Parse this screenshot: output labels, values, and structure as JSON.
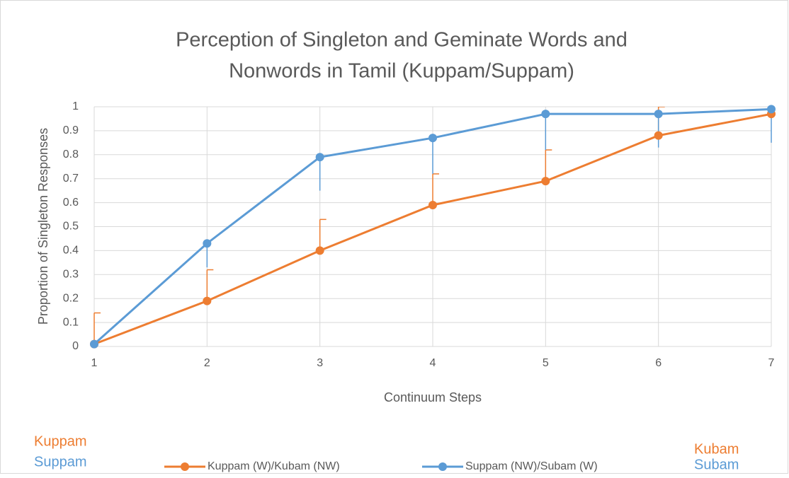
{
  "chart_data": {
    "type": "line",
    "title": [
      "Perception of Singleton and Geminate Words and",
      "Nonwords in Tamil (Kuppam/Suppam)"
    ],
    "x_label": "Continuum Steps",
    "y_label": "Proportion of Singleton  Responses",
    "x": [
      1,
      2,
      3,
      4,
      5,
      6,
      7
    ],
    "xlim": [
      1,
      7
    ],
    "xticks": [
      1,
      2,
      3,
      4,
      5,
      6,
      7
    ],
    "ylim": [
      0,
      1
    ],
    "yticks": [
      0,
      0.1,
      0.2,
      0.3,
      0.4,
      0.5,
      0.6,
      0.7,
      0.8,
      0.9,
      1
    ],
    "grid": true,
    "legend": "bottom",
    "series": [
      {
        "name": "Kuppam (W)/Kubam (NW)",
        "color": "#ED7D31",
        "values": [
          0.01,
          0.19,
          0.4,
          0.59,
          0.69,
          0.88,
          0.97
        ],
        "errors": [
          0.13,
          0.13,
          0.13,
          0.13,
          0.13,
          0.12,
          0.13
        ],
        "error_direction": "plus",
        "error_cap": true
      },
      {
        "name": "Suppam (NW)/Subam (W)",
        "color": "#5B9BD5",
        "values": [
          0.01,
          0.43,
          0.79,
          0.87,
          0.97,
          0.97,
          0.99
        ],
        "errors": [
          0,
          0.1,
          0.14,
          0.15,
          0.15,
          0.14,
          0.14
        ],
        "error_direction": "minus",
        "error_cap": false
      }
    ],
    "annotations": [
      {
        "text": "Kuppam",
        "color": "#ED7D31"
      },
      {
        "text": "Suppam",
        "color": "#5B9BD5"
      },
      {
        "text": "Kubam",
        "color": "#ED7D31"
      },
      {
        "text": "Subam",
        "color": "#5B9BD5"
      }
    ]
  }
}
